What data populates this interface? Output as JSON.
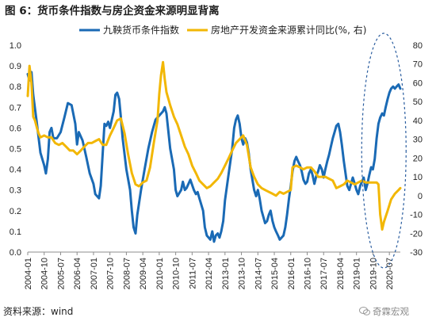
{
  "title": "图 6：货币条件指数与房企资金来源明显背离",
  "source": "资料来源：wind",
  "watermark": "奇霖宏观",
  "chart_data": {
    "type": "line",
    "title": "图 6：货币条件指数与房企资金来源明显背离",
    "x_ticks": [
      "2004-01",
      "2004-10",
      "2005-07",
      "2006-04",
      "2007-01",
      "2007-10",
      "2008-07",
      "2009-04",
      "2010-01",
      "2010-10",
      "2011-07",
      "2012-04",
      "2013-01",
      "2013-10",
      "2014-07",
      "2015-04",
      "2016-01",
      "2016-10",
      "2017-07",
      "2018-04",
      "2019-01",
      "2019-10",
      "2020-07"
    ],
    "y_left": {
      "min": 0,
      "max": 1.0,
      "ticks": [
        "0.0",
        "0.1",
        "0.2",
        "0.3",
        "0.4",
        "0.5",
        "0.6",
        "0.7",
        "0.8",
        "0.9",
        "1.0"
      ]
    },
    "y_right": {
      "min": -30,
      "max": 80,
      "ticks": [
        "-30",
        "-20",
        "-10",
        "0",
        "10",
        "20",
        "30",
        "40",
        "50",
        "60",
        "70",
        "80"
      ]
    },
    "grid": false,
    "legend_position": "top",
    "series": [
      {
        "name": "九鞅货币条件指数",
        "axis": "left",
        "color": "#1a6ab5",
        "points": [
          [
            2004.0,
            0.86
          ],
          [
            2004.08,
            0.83
          ],
          [
            2004.17,
            0.87
          ],
          [
            2004.25,
            0.76
          ],
          [
            2004.42,
            0.62
          ],
          [
            2004.58,
            0.48
          ],
          [
            2004.75,
            0.42
          ],
          [
            2004.83,
            0.38
          ],
          [
            2004.92,
            0.45
          ],
          [
            2005.0,
            0.58
          ],
          [
            2005.08,
            0.6
          ],
          [
            2005.17,
            0.55
          ],
          [
            2005.33,
            0.55
          ],
          [
            2005.5,
            0.58
          ],
          [
            2005.67,
            0.65
          ],
          [
            2005.83,
            0.72
          ],
          [
            2006.0,
            0.71
          ],
          [
            2006.17,
            0.62
          ],
          [
            2006.25,
            0.52
          ],
          [
            2006.33,
            0.58
          ],
          [
            2006.5,
            0.54
          ],
          [
            2006.67,
            0.46
          ],
          [
            2006.83,
            0.38
          ],
          [
            2007.0,
            0.33
          ],
          [
            2007.08,
            0.28
          ],
          [
            2007.25,
            0.26
          ],
          [
            2007.33,
            0.32
          ],
          [
            2007.42,
            0.48
          ],
          [
            2007.5,
            0.62
          ],
          [
            2007.58,
            0.61
          ],
          [
            2007.67,
            0.63
          ],
          [
            2007.75,
            0.6
          ],
          [
            2007.92,
            0.68
          ],
          [
            2008.0,
            0.76
          ],
          [
            2008.08,
            0.77
          ],
          [
            2008.17,
            0.74
          ],
          [
            2008.25,
            0.65
          ],
          [
            2008.33,
            0.55
          ],
          [
            2008.5,
            0.4
          ],
          [
            2008.67,
            0.3
          ],
          [
            2008.75,
            0.2
          ],
          [
            2008.83,
            0.12
          ],
          [
            2008.92,
            0.09
          ],
          [
            2009.0,
            0.18
          ],
          [
            2009.17,
            0.3
          ],
          [
            2009.33,
            0.4
          ],
          [
            2009.5,
            0.5
          ],
          [
            2009.67,
            0.58
          ],
          [
            2009.83,
            0.64
          ],
          [
            2010.0,
            0.66
          ],
          [
            2010.17,
            0.68
          ],
          [
            2010.25,
            0.7
          ],
          [
            2010.33,
            0.67
          ],
          [
            2010.5,
            0.5
          ],
          [
            2010.67,
            0.4
          ],
          [
            2010.75,
            0.3
          ],
          [
            2010.83,
            0.27
          ],
          [
            2011.0,
            0.3
          ],
          [
            2011.08,
            0.34
          ],
          [
            2011.17,
            0.3
          ],
          [
            2011.25,
            0.31
          ],
          [
            2011.42,
            0.35
          ],
          [
            2011.58,
            0.3
          ],
          [
            2011.67,
            0.28
          ],
          [
            2011.75,
            0.29
          ],
          [
            2011.83,
            0.26
          ],
          [
            2012.0,
            0.2
          ],
          [
            2012.08,
            0.12
          ],
          [
            2012.17,
            0.08
          ],
          [
            2012.25,
            0.07
          ],
          [
            2012.33,
            0.06
          ],
          [
            2012.42,
            0.1
          ],
          [
            2012.5,
            0.05
          ],
          [
            2012.58,
            0.08
          ],
          [
            2012.67,
            0.09
          ],
          [
            2012.75,
            0.07
          ],
          [
            2012.83,
            0.1
          ],
          [
            2012.92,
            0.15
          ],
          [
            2013.0,
            0.25
          ],
          [
            2013.17,
            0.38
          ],
          [
            2013.33,
            0.5
          ],
          [
            2013.42,
            0.6
          ],
          [
            2013.5,
            0.64
          ],
          [
            2013.58,
            0.66
          ],
          [
            2013.67,
            0.62
          ],
          [
            2013.75,
            0.55
          ],
          [
            2013.83,
            0.52
          ],
          [
            2013.92,
            0.55
          ],
          [
            2014.0,
            0.53
          ],
          [
            2014.08,
            0.48
          ],
          [
            2014.17,
            0.4
          ],
          [
            2014.25,
            0.35
          ],
          [
            2014.33,
            0.3
          ],
          [
            2014.42,
            0.27
          ],
          [
            2014.5,
            0.3
          ],
          [
            2014.58,
            0.26
          ],
          [
            2014.67,
            0.2
          ],
          [
            2014.75,
            0.17
          ],
          [
            2014.83,
            0.14
          ],
          [
            2014.92,
            0.15
          ],
          [
            2015.0,
            0.18
          ],
          [
            2015.08,
            0.2
          ],
          [
            2015.17,
            0.15
          ],
          [
            2015.25,
            0.12
          ],
          [
            2015.33,
            0.1
          ],
          [
            2015.42,
            0.08
          ],
          [
            2015.5,
            0.06
          ],
          [
            2015.58,
            0.07
          ],
          [
            2015.67,
            0.08
          ],
          [
            2015.75,
            0.12
          ],
          [
            2015.83,
            0.18
          ],
          [
            2015.92,
            0.26
          ],
          [
            2016.0,
            0.32
          ],
          [
            2016.08,
            0.39
          ],
          [
            2016.17,
            0.44
          ],
          [
            2016.25,
            0.46
          ],
          [
            2016.33,
            0.44
          ],
          [
            2016.42,
            0.42
          ],
          [
            2016.5,
            0.39
          ],
          [
            2016.58,
            0.35
          ],
          [
            2016.67,
            0.33
          ],
          [
            2016.75,
            0.34
          ],
          [
            2016.83,
            0.38
          ],
          [
            2016.92,
            0.4
          ],
          [
            2017.0,
            0.37
          ],
          [
            2017.08,
            0.33
          ],
          [
            2017.17,
            0.37
          ],
          [
            2017.25,
            0.39
          ],
          [
            2017.33,
            0.42
          ],
          [
            2017.42,
            0.4
          ],
          [
            2017.5,
            0.36
          ],
          [
            2017.58,
            0.4
          ],
          [
            2017.67,
            0.44
          ],
          [
            2017.75,
            0.47
          ],
          [
            2017.83,
            0.51
          ],
          [
            2017.92,
            0.55
          ],
          [
            2018.0,
            0.58
          ],
          [
            2018.08,
            0.61
          ],
          [
            2018.17,
            0.62
          ],
          [
            2018.25,
            0.58
          ],
          [
            2018.33,
            0.52
          ],
          [
            2018.42,
            0.44
          ],
          [
            2018.5,
            0.38
          ],
          [
            2018.58,
            0.32
          ],
          [
            2018.67,
            0.3
          ],
          [
            2018.75,
            0.33
          ],
          [
            2018.83,
            0.36
          ],
          [
            2018.92,
            0.33
          ],
          [
            2019.0,
            0.3
          ],
          [
            2019.08,
            0.28
          ],
          [
            2019.17,
            0.32
          ],
          [
            2019.25,
            0.34
          ],
          [
            2019.33,
            0.36
          ],
          [
            2019.42,
            0.3
          ],
          [
            2019.5,
            0.33
          ],
          [
            2019.58,
            0.37
          ],
          [
            2019.67,
            0.41
          ],
          [
            2019.75,
            0.4
          ],
          [
            2019.83,
            0.45
          ],
          [
            2019.92,
            0.55
          ],
          [
            2020.0,
            0.62
          ],
          [
            2020.08,
            0.65
          ],
          [
            2020.17,
            0.67
          ],
          [
            2020.25,
            0.66
          ],
          [
            2020.33,
            0.7
          ],
          [
            2020.42,
            0.74
          ],
          [
            2020.5,
            0.77
          ],
          [
            2020.58,
            0.79
          ],
          [
            2020.67,
            0.8
          ],
          [
            2020.75,
            0.79
          ],
          [
            2020.83,
            0.8
          ],
          [
            2020.92,
            0.81
          ],
          [
            2021.0,
            0.79
          ]
        ]
      },
      {
        "name": "房地产开发资金来源累计同比(%, 右)",
        "axis": "right",
        "color": "#f2b705",
        "points": [
          [
            2004.0,
            53
          ],
          [
            2004.08,
            69
          ],
          [
            2004.17,
            60
          ],
          [
            2004.25,
            42
          ],
          [
            2004.33,
            40
          ],
          [
            2004.42,
            36
          ],
          [
            2004.5,
            33
          ],
          [
            2004.58,
            31
          ],
          [
            2004.75,
            32
          ],
          [
            2004.92,
            31
          ],
          [
            2005.08,
            31
          ],
          [
            2005.25,
            28
          ],
          [
            2005.42,
            27
          ],
          [
            2005.58,
            28
          ],
          [
            2005.75,
            26
          ],
          [
            2005.92,
            24
          ],
          [
            2006.08,
            24
          ],
          [
            2006.25,
            22
          ],
          [
            2006.42,
            24
          ],
          [
            2006.58,
            26
          ],
          [
            2006.75,
            28
          ],
          [
            2006.92,
            28
          ],
          [
            2007.08,
            29
          ],
          [
            2007.25,
            30
          ],
          [
            2007.42,
            27
          ],
          [
            2007.58,
            27
          ],
          [
            2007.75,
            32
          ],
          [
            2007.92,
            36
          ],
          [
            2008.08,
            40
          ],
          [
            2008.25,
            41
          ],
          [
            2008.42,
            33
          ],
          [
            2008.58,
            22
          ],
          [
            2008.75,
            12
          ],
          [
            2008.92,
            6
          ],
          [
            2009.08,
            5
          ],
          [
            2009.25,
            7
          ],
          [
            2009.42,
            8
          ],
          [
            2009.58,
            15
          ],
          [
            2009.75,
            28
          ],
          [
            2009.92,
            40
          ],
          [
            2010.0,
            54
          ],
          [
            2010.08,
            64
          ],
          [
            2010.17,
            71
          ],
          [
            2010.25,
            62
          ],
          [
            2010.33,
            55
          ],
          [
            2010.5,
            48
          ],
          [
            2010.67,
            42
          ],
          [
            2010.83,
            38
          ],
          [
            2011.0,
            32
          ],
          [
            2011.17,
            26
          ],
          [
            2011.33,
            22
          ],
          [
            2011.5,
            16
          ],
          [
            2011.67,
            12
          ],
          [
            2011.83,
            8
          ],
          [
            2012.0,
            6
          ],
          [
            2012.17,
            4
          ],
          [
            2012.33,
            5
          ],
          [
            2012.5,
            7
          ],
          [
            2012.67,
            9
          ],
          [
            2012.83,
            12
          ],
          [
            2013.0,
            16
          ],
          [
            2013.17,
            20
          ],
          [
            2013.33,
            24
          ],
          [
            2013.5,
            28
          ],
          [
            2013.67,
            30
          ],
          [
            2013.83,
            32
          ],
          [
            2014.0,
            27
          ],
          [
            2014.17,
            15
          ],
          [
            2014.33,
            10
          ],
          [
            2014.5,
            6
          ],
          [
            2014.67,
            4
          ],
          [
            2014.83,
            3
          ],
          [
            2015.0,
            2
          ],
          [
            2015.17,
            1
          ],
          [
            2015.33,
            0
          ],
          [
            2015.5,
            2
          ],
          [
            2015.67,
            1
          ],
          [
            2015.83,
            2
          ],
          [
            2016.0,
            3
          ],
          [
            2016.08,
            15
          ],
          [
            2016.25,
            16
          ],
          [
            2016.42,
            15
          ],
          [
            2016.58,
            14
          ],
          [
            2016.75,
            15
          ],
          [
            2016.92,
            15
          ],
          [
            2017.08,
            13
          ],
          [
            2017.25,
            10
          ],
          [
            2017.42,
            10
          ],
          [
            2017.58,
            10
          ],
          [
            2017.75,
            9
          ],
          [
            2017.92,
            8
          ],
          [
            2018.08,
            4
          ],
          [
            2018.25,
            5
          ],
          [
            2018.42,
            6
          ],
          [
            2018.58,
            8
          ],
          [
            2018.75,
            7
          ],
          [
            2018.92,
            6
          ],
          [
            2019.08,
            7
          ],
          [
            2019.25,
            8
          ],
          [
            2019.42,
            7
          ],
          [
            2019.58,
            7
          ],
          [
            2019.75,
            7
          ],
          [
            2019.92,
            7
          ],
          [
            2020.0,
            6
          ],
          [
            2020.08,
            -10
          ],
          [
            2020.17,
            -18
          ],
          [
            2020.25,
            -14
          ],
          [
            2020.42,
            -8
          ],
          [
            2020.58,
            -2
          ],
          [
            2020.75,
            1
          ],
          [
            2020.92,
            3
          ],
          [
            2021.0,
            4
          ]
        ]
      }
    ]
  }
}
